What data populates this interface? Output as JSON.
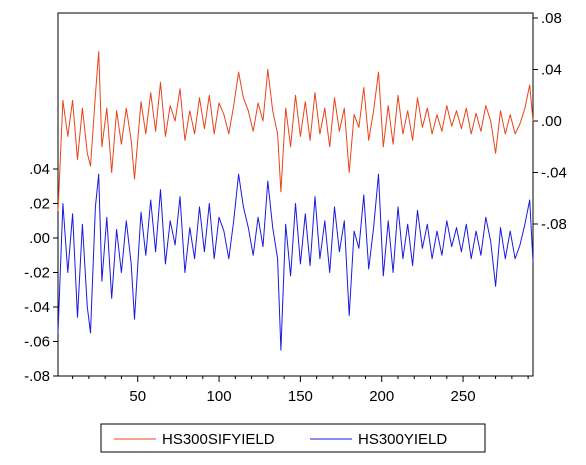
{
  "chart_data": {
    "type": "line",
    "x_ticks": [
      50,
      100,
      150,
      200,
      250
    ],
    "xlim": [
      1,
      293
    ],
    "left_axis": {
      "ylim": [
        -0.08,
        0.04
      ],
      "ticks": [
        0.04,
        0.02,
        0.0,
        -0.02,
        -0.04,
        -0.06,
        -0.08
      ],
      "tick_labels": [
        ".04",
        ".02",
        ".00",
        "-.02",
        "-.04",
        "-.06",
        "-.08"
      ]
    },
    "right_axis": {
      "ylim": [
        -0.08,
        0.08
      ],
      "ticks": [
        0.08,
        0.04,
        0.0,
        -0.04,
        -0.08
      ],
      "tick_labels": [
        ".08",
        ".04",
        ".00",
        "-.04",
        "-.08"
      ]
    },
    "grid": false,
    "legend_position": "bottom",
    "series": [
      {
        "name": "HS300SIFYIELD",
        "axis": "right",
        "color": "#e8441a",
        "x": [
          1,
          4,
          7,
          10,
          13,
          16,
          19,
          21,
          24,
          26,
          28,
          31,
          34,
          37,
          40,
          43,
          46,
          48,
          52,
          55,
          58,
          61,
          64,
          67,
          70,
          73,
          76,
          79,
          82,
          85,
          88,
          91,
          94,
          97,
          100,
          103,
          106,
          109,
          112,
          115,
          118,
          121,
          124,
          127,
          130,
          133,
          136,
          138,
          141,
          144,
          147,
          150,
          153,
          156,
          159,
          162,
          165,
          168,
          171,
          174,
          177,
          180,
          183,
          186,
          189,
          192,
          195,
          198,
          201,
          204,
          207,
          210,
          213,
          216,
          219,
          222,
          225,
          228,
          231,
          234,
          237,
          240,
          243,
          246,
          249,
          252,
          255,
          258,
          261,
          264,
          267,
          270,
          273,
          276,
          279,
          282,
          285,
          288,
          291,
          293
        ],
        "values": [
          -0.07,
          0.016,
          -0.012,
          0.016,
          -0.03,
          0.01,
          -0.025,
          -0.035,
          0.02,
          0.054,
          -0.02,
          0.01,
          -0.04,
          0.008,
          -0.018,
          0.01,
          -0.015,
          -0.045,
          0.015,
          -0.01,
          0.022,
          -0.008,
          0.03,
          -0.012,
          0.012,
          0.0,
          0.025,
          -0.015,
          0.008,
          -0.01,
          0.018,
          -0.006,
          0.02,
          -0.01,
          0.014,
          0.005,
          -0.01,
          0.012,
          0.038,
          0.018,
          0.008,
          -0.008,
          0.014,
          0.0,
          0.04,
          0.008,
          -0.01,
          -0.055,
          0.01,
          -0.02,
          0.02,
          -0.012,
          0.015,
          -0.015,
          0.022,
          -0.01,
          0.01,
          -0.02,
          0.018,
          -0.008,
          0.01,
          -0.04,
          0.005,
          -0.005,
          0.026,
          -0.015,
          0.008,
          0.038,
          -0.02,
          0.012,
          -0.018,
          0.02,
          -0.01,
          0.008,
          -0.015,
          0.018,
          -0.005,
          0.01,
          -0.01,
          0.005,
          -0.008,
          0.012,
          -0.004,
          0.008,
          -0.006,
          0.01,
          -0.01,
          0.006,
          -0.008,
          0.012,
          0.0,
          -0.025,
          0.008,
          -0.01,
          0.005,
          -0.01,
          -0.002,
          0.01,
          0.028,
          0.0
        ]
      },
      {
        "name": "HS300YIELD",
        "axis": "left",
        "color": "#1a1adf",
        "x": [
          1,
          4,
          7,
          10,
          13,
          16,
          19,
          21,
          24,
          26,
          28,
          31,
          34,
          37,
          40,
          43,
          46,
          48,
          52,
          55,
          58,
          61,
          64,
          67,
          70,
          73,
          76,
          79,
          82,
          85,
          88,
          91,
          94,
          97,
          100,
          103,
          106,
          109,
          112,
          115,
          118,
          121,
          124,
          127,
          130,
          133,
          136,
          138,
          141,
          144,
          147,
          150,
          153,
          156,
          159,
          162,
          165,
          168,
          171,
          174,
          177,
          180,
          183,
          186,
          189,
          192,
          195,
          198,
          201,
          204,
          207,
          210,
          213,
          216,
          219,
          222,
          225,
          228,
          231,
          234,
          237,
          240,
          243,
          246,
          249,
          252,
          255,
          258,
          261,
          264,
          267,
          270,
          273,
          276,
          279,
          282,
          285,
          288,
          291,
          293
        ],
        "values": [
          -0.055,
          0.02,
          -0.02,
          0.014,
          -0.046,
          0.008,
          -0.04,
          -0.055,
          0.018,
          0.037,
          -0.025,
          0.012,
          -0.035,
          0.005,
          -0.02,
          0.01,
          -0.015,
          -0.047,
          0.015,
          -0.01,
          0.022,
          -0.008,
          0.028,
          -0.015,
          0.01,
          -0.004,
          0.024,
          -0.02,
          0.006,
          -0.012,
          0.018,
          -0.008,
          0.02,
          -0.012,
          0.012,
          0.004,
          -0.012,
          0.01,
          0.037,
          0.018,
          0.006,
          -0.01,
          0.012,
          -0.005,
          0.033,
          0.006,
          -0.012,
          -0.065,
          0.008,
          -0.022,
          0.02,
          -0.015,
          0.014,
          -0.016,
          0.024,
          -0.012,
          0.01,
          -0.02,
          0.018,
          -0.008,
          0.01,
          -0.045,
          0.004,
          -0.006,
          0.025,
          -0.018,
          0.006,
          0.037,
          -0.022,
          0.01,
          -0.02,
          0.018,
          -0.012,
          0.008,
          -0.016,
          0.016,
          -0.006,
          0.008,
          -0.012,
          0.004,
          -0.01,
          0.01,
          -0.005,
          0.006,
          -0.008,
          0.008,
          -0.012,
          0.004,
          -0.01,
          0.012,
          -0.002,
          -0.028,
          0.006,
          -0.012,
          0.004,
          -0.012,
          -0.004,
          0.008,
          0.022,
          -0.014
        ]
      }
    ]
  }
}
